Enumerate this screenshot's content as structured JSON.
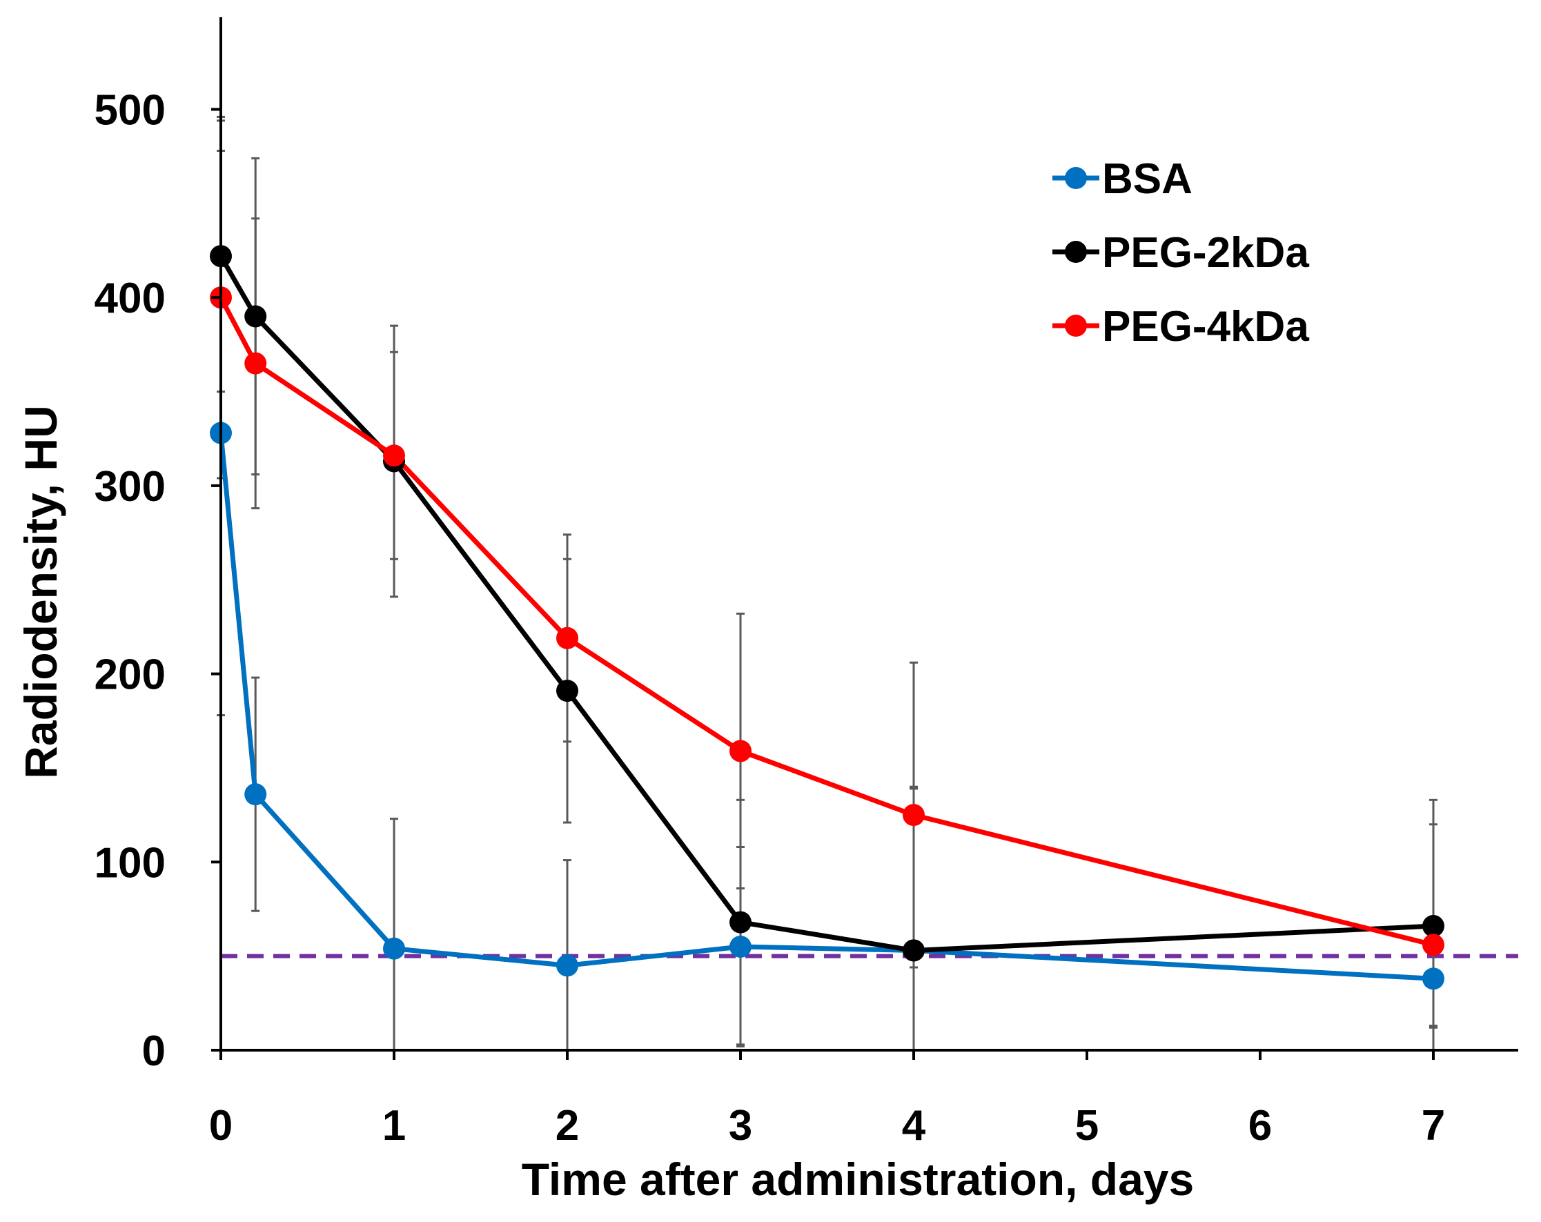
{
  "chart_data": {
    "type": "line",
    "xlabel": "Time after administration, days",
    "ylabel": "Radiodensity, HU",
    "xlim": [
      0,
      7.55
    ],
    "ylim": [
      0,
      550
    ],
    "x_ticks": [
      "0",
      "1",
      "2",
      "3",
      "4",
      "5",
      "6",
      "7"
    ],
    "y_ticks": [
      "0",
      "100",
      "200",
      "300",
      "400",
      "500"
    ],
    "grid": false,
    "legend_position": "top-right",
    "reference_line": {
      "y": 50,
      "style": "dashed",
      "color": "#7030a0"
    },
    "series": [
      {
        "name": "BSA",
        "color": "#0070c0",
        "x": [
          0,
          0.2,
          1,
          2,
          3,
          4,
          7
        ],
        "y": [
          328,
          136,
          54,
          45,
          55,
          53,
          38
        ],
        "err": [
          150,
          62,
          69,
          56,
          53,
          86,
          25
        ]
      },
      {
        "name": "PEG-2kDa",
        "color": "#000000",
        "x": [
          0,
          0.2,
          1,
          2,
          3,
          4,
          7
        ],
        "y": [
          422,
          390,
          313,
          191,
          68,
          53,
          66
        ],
        "err": [
          72,
          84,
          72,
          70,
          65,
          87,
          54
        ]
      },
      {
        "name": "PEG-4kDa",
        "color": "#ff0000",
        "x": [
          0,
          0.2,
          1,
          2,
          3,
          4,
          7
        ],
        "y": [
          400,
          365,
          316,
          219,
          159,
          125,
          56
        ],
        "err": [
          96,
          77,
          55,
          55,
          73,
          81,
          77
        ]
      }
    ]
  }
}
